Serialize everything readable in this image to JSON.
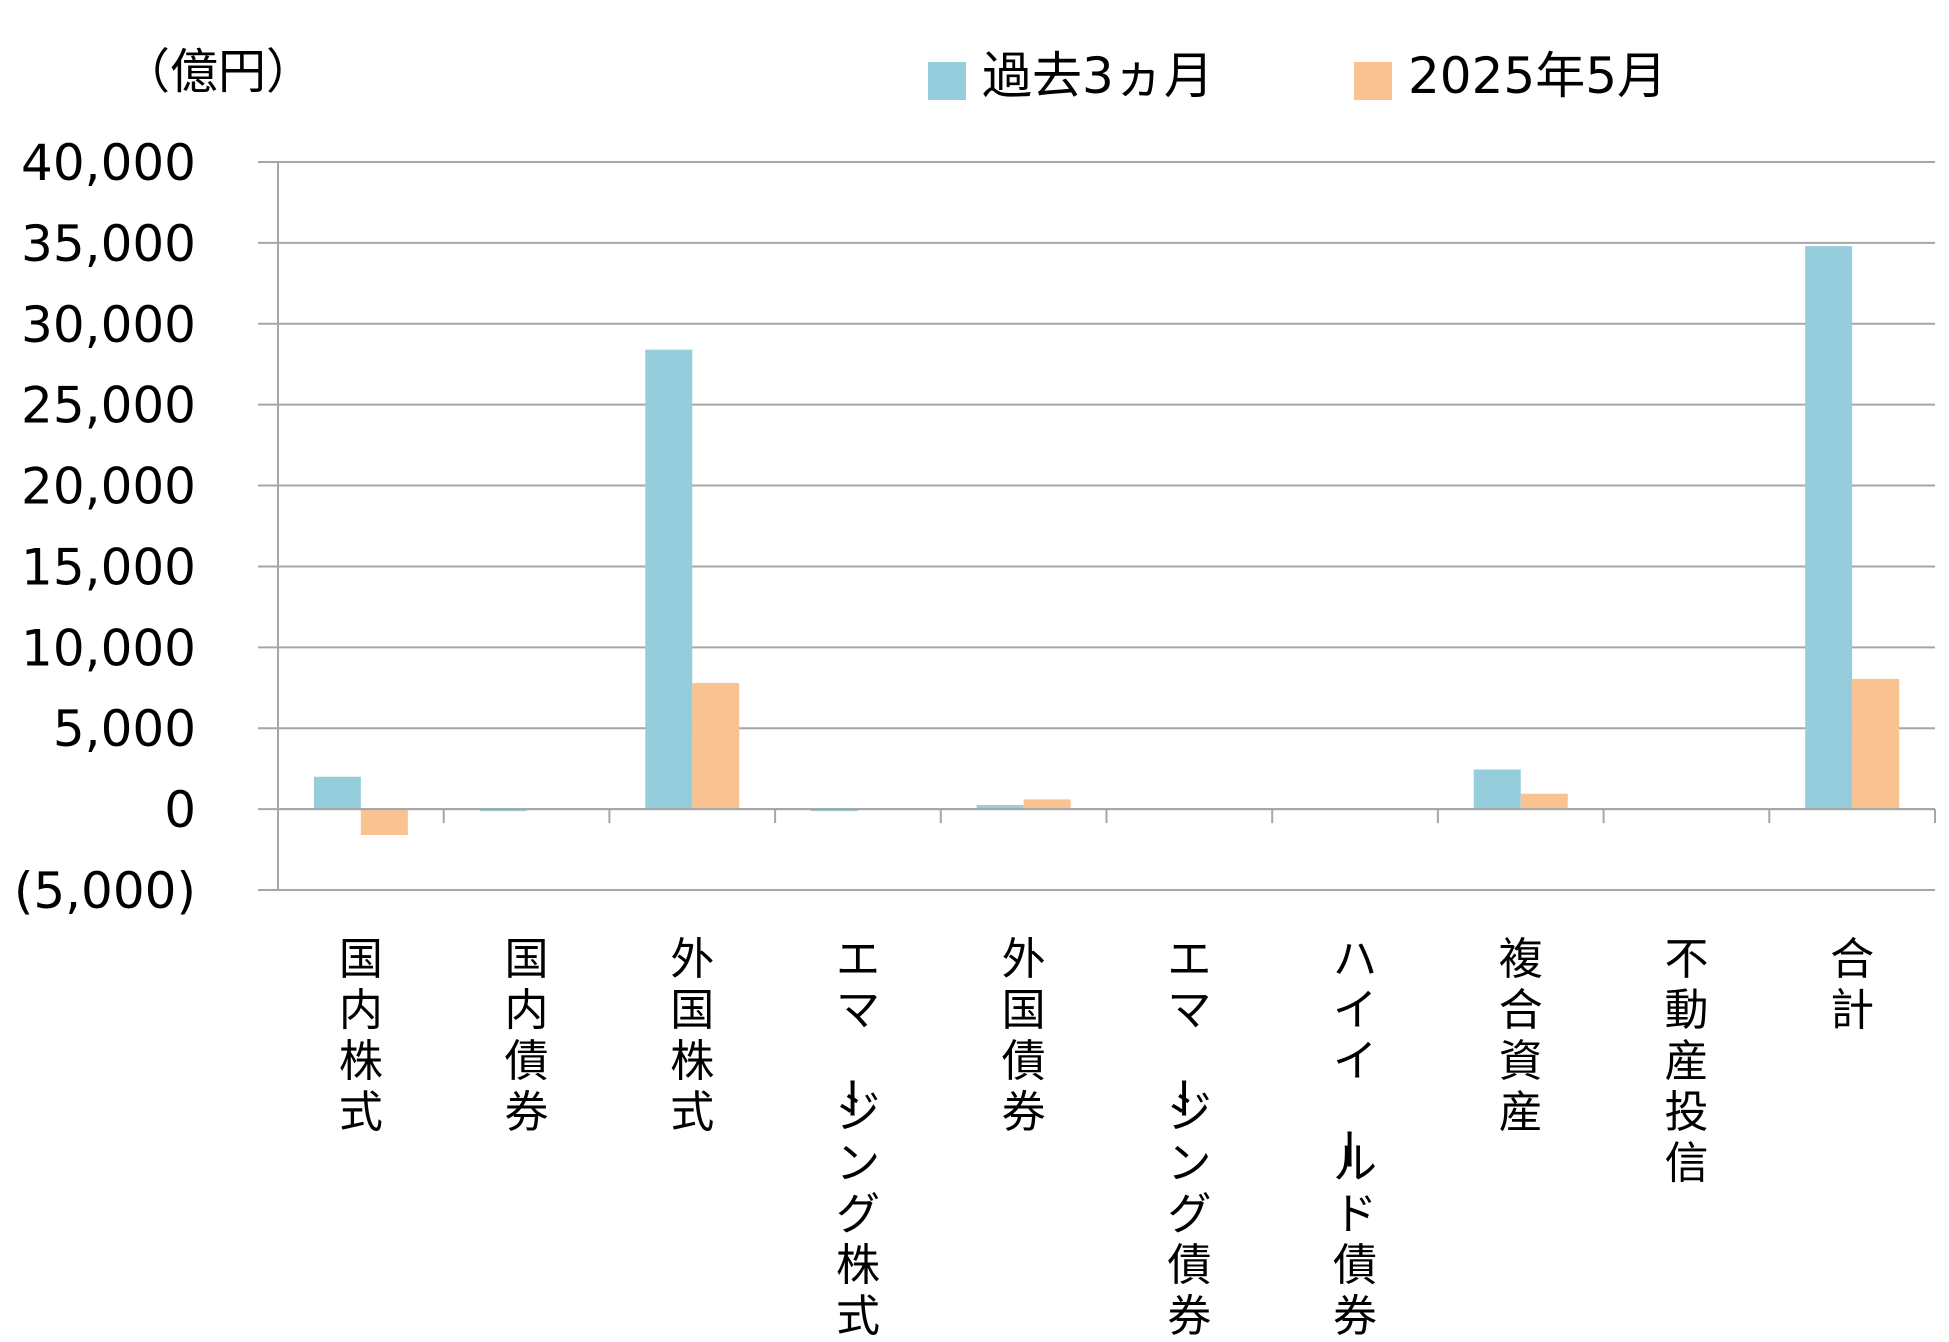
{
  "chart_data": {
    "type": "bar",
    "unit_label": "（億円）",
    "categories": [
      "国内株式",
      "国内債券",
      "外国株式",
      "エマージング株式",
      "外国債券",
      "エマージング債券",
      "ハイイールド債券",
      "複合資産",
      "不動産投信",
      "合計"
    ],
    "series": [
      {
        "name": "過去3ヵ月",
        "color": "#96CDDD",
        "values": [
          2000,
          -100,
          28400,
          -100,
          250,
          0,
          0,
          2450,
          0,
          34800
        ]
      },
      {
        "name": "2025年5月",
        "color": "#F8C291",
        "values": [
          -1600,
          0,
          7800,
          0,
          600,
          0,
          0,
          950,
          0,
          8050
        ]
      }
    ],
    "ylim": [
      -5000,
      40000
    ],
    "yticks": [
      40000,
      35000,
      30000,
      25000,
      20000,
      15000,
      10000,
      5000,
      0,
      -5000
    ],
    "ytick_labels": [
      "40,000",
      "35,000",
      "30,000",
      "25,000",
      "20,000",
      "15,000",
      "10,000",
      "5,000",
      "0",
      "(5,000)"
    ],
    "negative_label_color": "#FF0000",
    "grid": true,
    "legend_position": "top"
  }
}
